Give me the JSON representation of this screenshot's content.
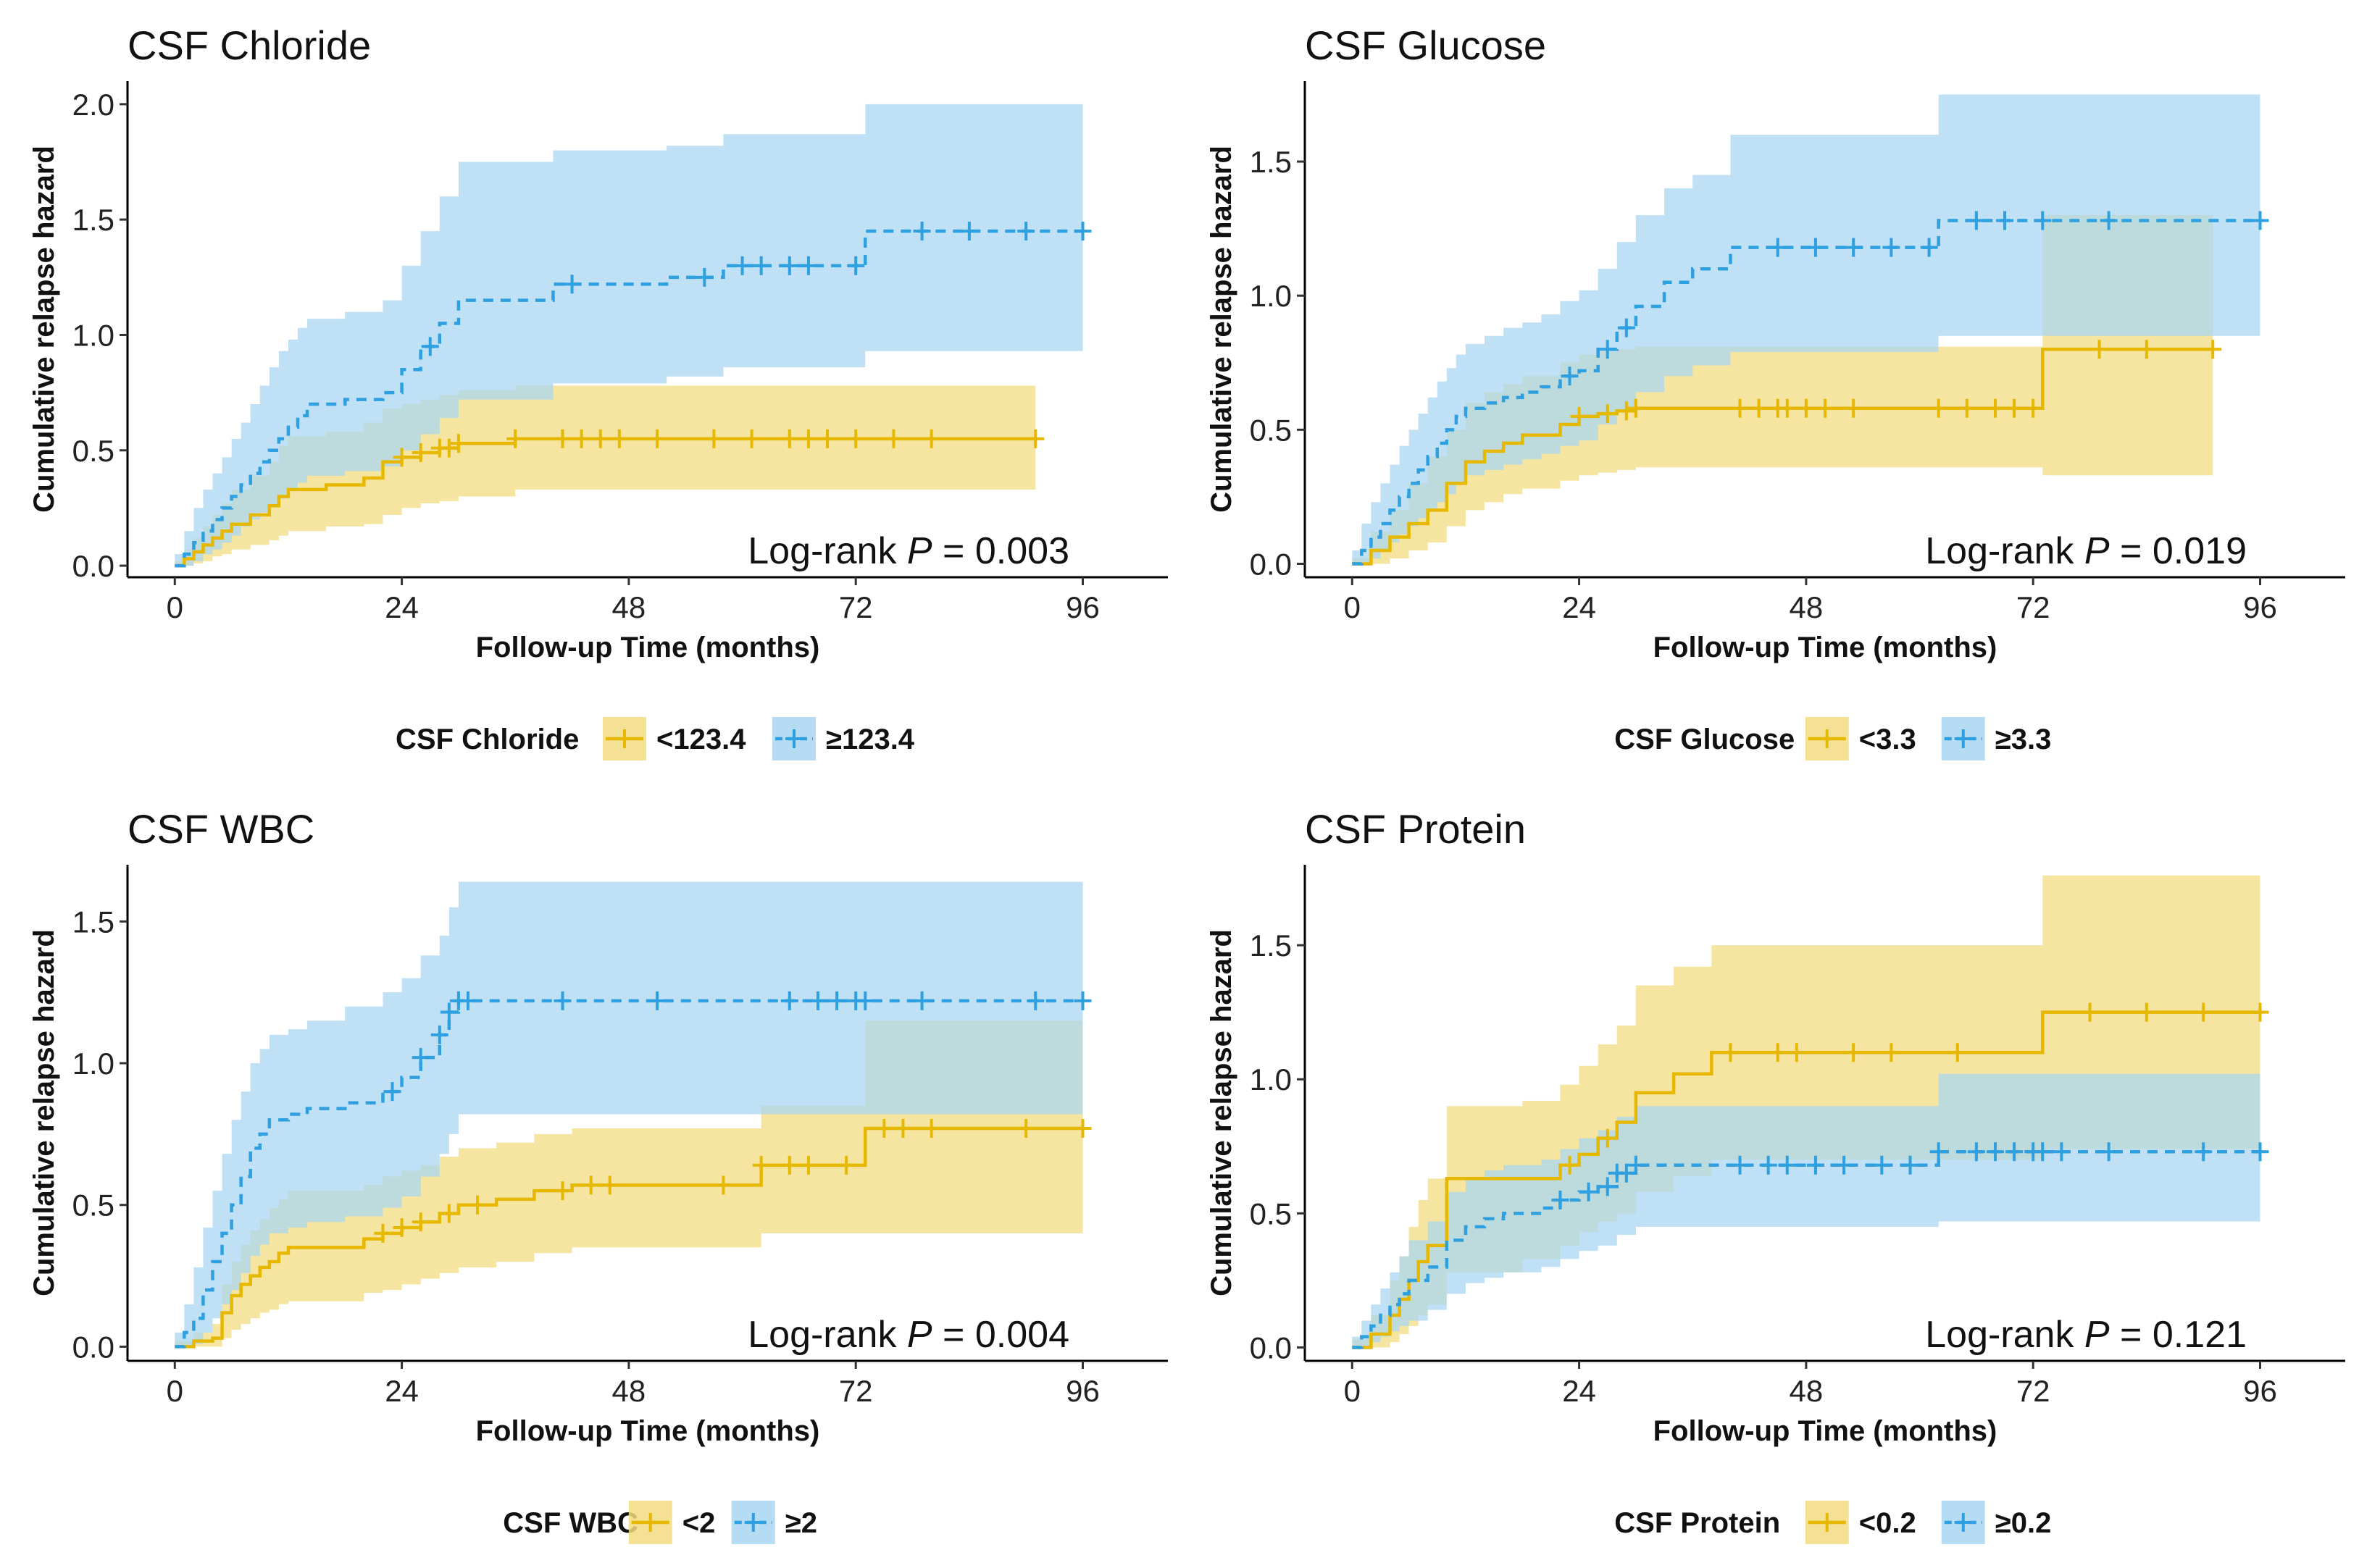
{
  "colors": {
    "low": "#E7B800",
    "high": "#2E9FDF",
    "low_band": "#F2DC80",
    "high_band": "#A9D6F2"
  },
  "axis_common": {
    "xlabel": "Follow-up Time (months)",
    "ylabel": "Cumulative relapse hazard",
    "xticks": [
      0,
      24,
      48,
      72,
      96
    ],
    "xlim": [
      -5,
      105
    ]
  },
  "chart_data": [
    {
      "type": "line",
      "title": "CSF Chloride",
      "ylim": [
        -0.05,
        2.1
      ],
      "yticks": [
        "0.0",
        "0.5",
        "1.0",
        "1.5",
        "2.0"
      ],
      "logrank_label": "Log-rank",
      "p_label": "P",
      "p_text": "= 0.003",
      "legend_title": "CSF Chloride",
      "series": [
        {
          "name": "<123.4",
          "group": "low",
          "dash": false,
          "x": [
            0,
            1,
            2,
            3,
            4,
            5,
            6,
            8,
            10,
            11,
            12,
            14,
            16,
            20,
            22,
            24,
            26,
            28,
            30,
            33,
            36,
            91
          ],
          "y": [
            0,
            0.03,
            0.06,
            0.09,
            0.12,
            0.15,
            0.18,
            0.22,
            0.26,
            0.3,
            0.33,
            0.33,
            0.35,
            0.38,
            0.45,
            0.47,
            0.49,
            0.51,
            0.53,
            0.53,
            0.55,
            0.55
          ],
          "upper": [
            0.02,
            0.07,
            0.12,
            0.17,
            0.22,
            0.27,
            0.33,
            0.39,
            0.45,
            0.52,
            0.56,
            0.56,
            0.58,
            0.62,
            0.68,
            0.7,
            0.72,
            0.74,
            0.76,
            0.76,
            0.78,
            0.78
          ],
          "lower": [
            0,
            0,
            0.01,
            0.02,
            0.04,
            0.05,
            0.07,
            0.09,
            0.11,
            0.13,
            0.15,
            0.15,
            0.17,
            0.18,
            0.22,
            0.25,
            0.27,
            0.28,
            0.3,
            0.3,
            0.33,
            0.33
          ],
          "censor_x": [
            24,
            26,
            28,
            29,
            30,
            36,
            41,
            43,
            45,
            47,
            51,
            57,
            61,
            65,
            67,
            69,
            72,
            76,
            80,
            91
          ]
        },
        {
          "name": "≥123.4",
          "group": "high",
          "dash": true,
          "x": [
            0,
            1,
            2,
            3,
            4,
            5,
            6,
            7,
            8,
            9,
            10,
            11,
            12,
            13,
            14,
            18,
            22,
            24,
            26,
            28,
            30,
            36,
            40,
            48,
            52,
            58,
            62,
            73,
            75,
            96
          ],
          "y": [
            0,
            0.05,
            0.1,
            0.15,
            0.2,
            0.25,
            0.3,
            0.35,
            0.4,
            0.45,
            0.5,
            0.55,
            0.6,
            0.65,
            0.7,
            0.72,
            0.75,
            0.85,
            0.95,
            1.05,
            1.15,
            1.15,
            1.22,
            1.22,
            1.25,
            1.3,
            1.3,
            1.45,
            1.45,
            1.45
          ],
          "upper": [
            0.05,
            0.15,
            0.25,
            0.33,
            0.4,
            0.47,
            0.55,
            0.62,
            0.7,
            0.78,
            0.86,
            0.93,
            0.98,
            1.03,
            1.07,
            1.1,
            1.15,
            1.3,
            1.45,
            1.6,
            1.75,
            1.75,
            1.8,
            1.8,
            1.82,
            1.87,
            1.87,
            2.0,
            2.0,
            2.0
          ],
          "lower": [
            0,
            0,
            0.02,
            0.05,
            0.07,
            0.1,
            0.13,
            0.17,
            0.2,
            0.23,
            0.26,
            0.29,
            0.33,
            0.36,
            0.39,
            0.41,
            0.43,
            0.5,
            0.57,
            0.64,
            0.72,
            0.72,
            0.79,
            0.79,
            0.82,
            0.86,
            0.86,
            0.93,
            0.93,
            0.93
          ],
          "censor_x": [
            27,
            42,
            56,
            60,
            62,
            65,
            67,
            72,
            79,
            84,
            90,
            96
          ]
        }
      ]
    },
    {
      "type": "line",
      "title": "CSF Glucose",
      "ylim": [
        -0.05,
        1.8
      ],
      "yticks": [
        "0.0",
        "0.5",
        "1.0",
        "1.5"
      ],
      "logrank_label": "Log-rank",
      "p_label": "P",
      "p_text": "= 0.019",
      "legend_title": "CSF Glucose",
      "series": [
        {
          "name": "<3.3",
          "group": "low",
          "dash": false,
          "x": [
            0,
            2,
            4,
            6,
            8,
            10,
            12,
            14,
            16,
            18,
            22,
            24,
            26,
            28,
            30,
            36,
            48,
            60,
            72,
            73,
            91
          ],
          "y": [
            0,
            0.05,
            0.1,
            0.15,
            0.2,
            0.3,
            0.38,
            0.42,
            0.45,
            0.48,
            0.52,
            0.55,
            0.56,
            0.57,
            0.58,
            0.58,
            0.58,
            0.58,
            0.58,
            0.8,
            0.8
          ],
          "upper": [
            0.02,
            0.12,
            0.2,
            0.3,
            0.4,
            0.5,
            0.6,
            0.64,
            0.67,
            0.7,
            0.75,
            0.78,
            0.79,
            0.8,
            0.81,
            0.81,
            0.81,
            0.81,
            0.81,
            1.3,
            1.3
          ],
          "lower": [
            0,
            0,
            0.02,
            0.05,
            0.08,
            0.14,
            0.2,
            0.23,
            0.26,
            0.28,
            0.31,
            0.33,
            0.34,
            0.35,
            0.36,
            0.36,
            0.36,
            0.36,
            0.36,
            0.33,
            0.33
          ],
          "censor_x": [
            24,
            27,
            29,
            30,
            41,
            43,
            45,
            46,
            48,
            50,
            53,
            62,
            65,
            68,
            70,
            72,
            79,
            84,
            91
          ]
        },
        {
          "name": "≥3.3",
          "group": "high",
          "dash": true,
          "x": [
            0,
            1,
            2,
            3,
            4,
            5,
            6,
            7,
            8,
            9,
            10,
            11,
            12,
            14,
            16,
            18,
            20,
            22,
            24,
            26,
            28,
            30,
            33,
            36,
            40,
            45,
            55,
            62,
            96
          ],
          "y": [
            0,
            0.05,
            0.1,
            0.15,
            0.2,
            0.25,
            0.3,
            0.35,
            0.4,
            0.45,
            0.5,
            0.55,
            0.58,
            0.6,
            0.62,
            0.64,
            0.66,
            0.7,
            0.72,
            0.8,
            0.88,
            0.96,
            1.05,
            1.1,
            1.18,
            1.18,
            1.18,
            1.28,
            1.28
          ],
          "upper": [
            0.05,
            0.15,
            0.23,
            0.3,
            0.37,
            0.44,
            0.5,
            0.56,
            0.62,
            0.68,
            0.73,
            0.78,
            0.82,
            0.85,
            0.88,
            0.9,
            0.93,
            0.98,
            1.02,
            1.1,
            1.2,
            1.3,
            1.4,
            1.45,
            1.6,
            1.6,
            1.6,
            1.75,
            1.75
          ],
          "lower": [
            0,
            0,
            0.02,
            0.05,
            0.08,
            0.11,
            0.14,
            0.17,
            0.2,
            0.23,
            0.26,
            0.3,
            0.33,
            0.35,
            0.37,
            0.39,
            0.41,
            0.44,
            0.46,
            0.52,
            0.57,
            0.64,
            0.7,
            0.74,
            0.79,
            0.79,
            0.79,
            0.85,
            0.85
          ],
          "censor_x": [
            23,
            27,
            29,
            45,
            49,
            53,
            57,
            61,
            66,
            69,
            73,
            80,
            96
          ]
        }
      ]
    },
    {
      "type": "line",
      "title": "CSF WBC",
      "ylim": [
        -0.05,
        1.7
      ],
      "yticks": [
        "0.0",
        "0.5",
        "1.0",
        "1.5"
      ],
      "logrank_label": "Log-rank",
      "p_label": "P",
      "p_text": "= 0.004",
      "legend_title": "CSF WBC",
      "series": [
        {
          "name": "<2",
          "group": "low",
          "dash": false,
          "x": [
            0,
            2,
            4,
            5,
            6,
            7,
            8,
            9,
            10,
            11,
            12,
            14,
            16,
            20,
            22,
            24,
            26,
            28,
            30,
            34,
            38,
            42,
            62,
            66,
            73,
            75,
            96
          ],
          "y": [
            0,
            0.02,
            0.03,
            0.12,
            0.18,
            0.22,
            0.25,
            0.28,
            0.3,
            0.33,
            0.35,
            0.35,
            0.35,
            0.38,
            0.4,
            0.42,
            0.44,
            0.47,
            0.5,
            0.52,
            0.55,
            0.57,
            0.64,
            0.64,
            0.77,
            0.77,
            0.77
          ],
          "upper": [
            0.02,
            0.05,
            0.08,
            0.22,
            0.3,
            0.36,
            0.41,
            0.45,
            0.49,
            0.52,
            0.55,
            0.55,
            0.55,
            0.57,
            0.6,
            0.62,
            0.64,
            0.67,
            0.7,
            0.72,
            0.75,
            0.77,
            0.85,
            0.85,
            1.15,
            1.15,
            1.15
          ],
          "lower": [
            0,
            0,
            0,
            0.03,
            0.06,
            0.08,
            0.1,
            0.12,
            0.13,
            0.15,
            0.16,
            0.16,
            0.16,
            0.19,
            0.2,
            0.22,
            0.24,
            0.26,
            0.28,
            0.3,
            0.33,
            0.35,
            0.4,
            0.4,
            0.4,
            0.4,
            0.4
          ],
          "censor_x": [
            22,
            24,
            26,
            29,
            32,
            41,
            44,
            46,
            58,
            62,
            65,
            67,
            71,
            75,
            77,
            80,
            90,
            96
          ]
        },
        {
          "name": "≥2",
          "group": "high",
          "dash": true,
          "x": [
            0,
            1,
            2,
            3,
            4,
            5,
            6,
            7,
            8,
            9,
            10,
            12,
            14,
            18,
            22,
            24,
            26,
            28,
            29,
            30,
            96
          ],
          "y": [
            0,
            0.05,
            0.1,
            0.2,
            0.3,
            0.4,
            0.5,
            0.6,
            0.7,
            0.75,
            0.8,
            0.82,
            0.84,
            0.86,
            0.9,
            0.95,
            1.02,
            1.1,
            1.18,
            1.22,
            1.22
          ],
          "upper": [
            0.05,
            0.15,
            0.28,
            0.42,
            0.55,
            0.68,
            0.8,
            0.9,
            1.0,
            1.05,
            1.1,
            1.12,
            1.15,
            1.2,
            1.25,
            1.3,
            1.38,
            1.45,
            1.55,
            1.64,
            1.64
          ],
          "lower": [
            0,
            0,
            0.01,
            0.05,
            0.1,
            0.15,
            0.2,
            0.26,
            0.32,
            0.36,
            0.4,
            0.42,
            0.44,
            0.46,
            0.49,
            0.53,
            0.6,
            0.68,
            0.75,
            0.82,
            0.82
          ],
          "censor_x": [
            23,
            26,
            28,
            29,
            30,
            31,
            41,
            51,
            65,
            68,
            70,
            72,
            73,
            79,
            91,
            96
          ]
        }
      ]
    },
    {
      "type": "line",
      "title": "CSF Protein",
      "ylim": [
        -0.05,
        1.8
      ],
      "yticks": [
        "0.0",
        "0.5",
        "1.0",
        "1.5"
      ],
      "logrank_label": "Log-rank",
      "p_label": "P",
      "p_text": "= 0.121",
      "legend_title": "CSF Protein",
      "series": [
        {
          "name": "<0.2",
          "group": "low",
          "dash": false,
          "x": [
            0,
            2,
            4,
            5,
            6,
            7,
            8,
            10,
            14,
            18,
            22,
            24,
            26,
            28,
            30,
            34,
            38,
            48,
            60,
            73,
            96
          ],
          "y": [
            0,
            0.05,
            0.12,
            0.18,
            0.25,
            0.32,
            0.38,
            0.63,
            0.63,
            0.63,
            0.68,
            0.72,
            0.78,
            0.84,
            0.95,
            1.02,
            1.1,
            1.1,
            1.1,
            1.25,
            1.25
          ],
          "upper": [
            0.03,
            0.12,
            0.25,
            0.34,
            0.45,
            0.55,
            0.63,
            0.9,
            0.9,
            0.92,
            0.98,
            1.05,
            1.13,
            1.2,
            1.35,
            1.42,
            1.5,
            1.5,
            1.5,
            1.76,
            1.76
          ],
          "lower": [
            0,
            0,
            0.02,
            0.05,
            0.08,
            0.12,
            0.16,
            0.28,
            0.28,
            0.33,
            0.38,
            0.43,
            0.47,
            0.5,
            0.58,
            0.64,
            0.7,
            0.7,
            0.7,
            0.74,
            0.74
          ],
          "censor_x": [
            23,
            27,
            40,
            45,
            47,
            53,
            57,
            64,
            78,
            84,
            90,
            96
          ]
        },
        {
          "name": "≥0.2",
          "group": "high",
          "dash": true,
          "x": [
            0,
            1,
            2,
            3,
            4,
            5,
            6,
            8,
            10,
            12,
            14,
            16,
            18,
            20,
            22,
            24,
            26,
            28,
            30,
            36,
            48,
            62,
            96
          ],
          "y": [
            0,
            0.04,
            0.08,
            0.12,
            0.16,
            0.2,
            0.25,
            0.3,
            0.4,
            0.45,
            0.48,
            0.5,
            0.5,
            0.52,
            0.55,
            0.58,
            0.6,
            0.65,
            0.68,
            0.68,
            0.68,
            0.73,
            0.73
          ],
          "upper": [
            0.04,
            0.1,
            0.16,
            0.22,
            0.28,
            0.34,
            0.4,
            0.47,
            0.58,
            0.63,
            0.66,
            0.68,
            0.68,
            0.7,
            0.74,
            0.78,
            0.81,
            0.86,
            0.9,
            0.9,
            0.9,
            1.02,
            1.02
          ],
          "lower": [
            0,
            0,
            0.02,
            0.04,
            0.06,
            0.08,
            0.1,
            0.14,
            0.2,
            0.24,
            0.26,
            0.28,
            0.28,
            0.3,
            0.33,
            0.36,
            0.38,
            0.42,
            0.45,
            0.45,
            0.45,
            0.47,
            0.47
          ],
          "censor_x": [
            22,
            25,
            27,
            28,
            29,
            30,
            41,
            44,
            46,
            49,
            52,
            56,
            59,
            62,
            66,
            68,
            70,
            72,
            73,
            75,
            80,
            90,
            96
          ]
        }
      ]
    }
  ]
}
